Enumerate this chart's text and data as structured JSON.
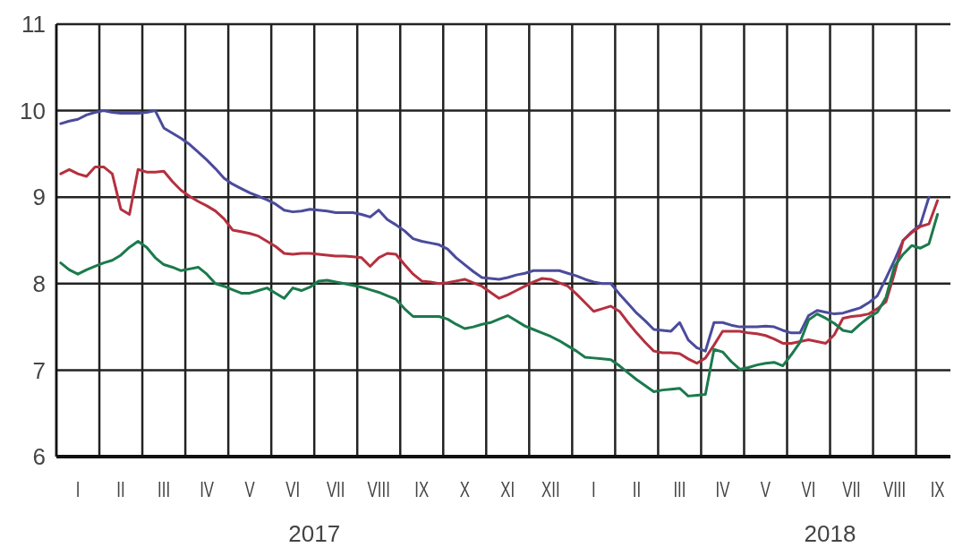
{
  "chart_data": {
    "type": "line",
    "ylim": [
      6,
      11
    ],
    "yticks": [
      6,
      7,
      8,
      9,
      10,
      11
    ],
    "grid": true,
    "categories": [
      null,
      null,
      "I",
      null,
      null,
      null,
      null,
      "II",
      null,
      null,
      null,
      null,
      "III",
      null,
      null,
      null,
      null,
      "IV",
      null,
      null,
      null,
      null,
      "V",
      null,
      null,
      null,
      null,
      "VI",
      null,
      null,
      null,
      null,
      "VII",
      null,
      null,
      null,
      null,
      "VIII",
      null,
      null,
      null,
      null,
      "IX",
      null,
      null,
      null,
      null,
      "X",
      null,
      null,
      null,
      null,
      "XI",
      null,
      null,
      null,
      null,
      "XII",
      null,
      null,
      null,
      null,
      "I",
      null,
      null,
      null,
      null,
      "II",
      null,
      null,
      null,
      null,
      "III",
      null,
      null,
      null,
      null,
      "IV",
      null,
      null,
      null,
      null,
      "V",
      null,
      null,
      null,
      null,
      "VI",
      null,
      null,
      null,
      null,
      "VII",
      null,
      null,
      null,
      null,
      "VIII",
      null,
      null,
      null,
      null,
      "IX",
      null
    ],
    "annotations": [
      "2017",
      "2018"
    ],
    "series": [
      {
        "color": "#4b4b9c",
        "values": [
          9.85,
          9.88,
          9.9,
          9.95,
          9.98,
          10.0,
          9.98,
          9.97,
          9.97,
          9.97,
          9.98,
          10.0,
          9.8,
          9.74,
          9.68,
          9.61,
          9.52,
          9.43,
          9.33,
          9.22,
          9.15,
          9.1,
          9.05,
          9.01,
          8.97,
          8.92,
          8.85,
          8.83,
          8.84,
          8.86,
          8.85,
          8.84,
          8.82,
          8.82,
          8.82,
          8.8,
          8.77,
          8.85,
          8.74,
          8.68,
          8.61,
          8.52,
          8.49,
          8.47,
          8.45,
          8.4,
          8.3,
          8.22,
          8.14,
          8.07,
          8.06,
          8.05,
          8.07,
          8.1,
          8.12,
          8.15,
          8.15,
          8.15,
          8.15,
          8.12,
          8.09,
          8.05,
          8.02,
          8.0,
          8.0,
          7.88,
          7.77,
          7.66,
          7.57,
          7.47,
          7.46,
          7.45,
          7.55,
          7.35,
          7.26,
          7.22,
          7.55,
          7.55,
          7.52,
          7.5,
          7.5,
          7.5,
          7.51,
          7.5,
          7.46,
          7.43,
          7.43,
          7.63,
          7.69,
          7.67,
          7.65,
          7.66,
          7.69,
          7.72,
          7.78,
          7.86,
          8.06,
          8.27,
          8.5,
          8.6,
          8.68,
          9.0,
          null,
          null
        ]
      },
      {
        "color": "#b5303f",
        "values": [
          9.27,
          9.32,
          9.27,
          9.24,
          9.35,
          9.35,
          9.27,
          8.86,
          8.8,
          9.32,
          9.29,
          9.29,
          9.3,
          9.18,
          9.08,
          9.01,
          8.95,
          8.9,
          8.84,
          8.75,
          8.62,
          8.6,
          8.58,
          8.55,
          8.49,
          8.43,
          8.35,
          8.34,
          8.35,
          8.35,
          8.34,
          8.33,
          8.32,
          8.32,
          8.31,
          8.3,
          8.2,
          8.3,
          8.35,
          8.34,
          8.22,
          8.11,
          8.03,
          8.02,
          8.0,
          8.01,
          8.03,
          8.05,
          8.01,
          7.97,
          7.9,
          7.83,
          7.87,
          7.92,
          7.97,
          8.02,
          8.06,
          8.05,
          8.01,
          7.97,
          7.88,
          7.78,
          7.68,
          7.71,
          7.74,
          7.68,
          7.55,
          7.43,
          7.32,
          7.22,
          7.2,
          7.2,
          7.19,
          7.13,
          7.08,
          7.14,
          7.29,
          7.45,
          7.45,
          7.45,
          7.43,
          7.42,
          7.4,
          7.36,
          7.31,
          7.31,
          7.33,
          7.35,
          7.33,
          7.31,
          7.41,
          7.6,
          7.62,
          7.63,
          7.65,
          7.71,
          7.79,
          8.12,
          8.5,
          8.59,
          8.66,
          8.69,
          8.96,
          null
        ]
      },
      {
        "color": "#1b7a4c",
        "values": [
          8.24,
          8.16,
          8.11,
          8.16,
          8.2,
          8.24,
          8.27,
          8.33,
          8.42,
          8.49,
          8.42,
          8.3,
          8.22,
          8.19,
          8.15,
          8.17,
          8.19,
          8.11,
          8.0,
          7.97,
          7.93,
          7.89,
          7.89,
          7.92,
          7.95,
          7.89,
          7.83,
          7.95,
          7.92,
          7.96,
          8.03,
          8.04,
          8.02,
          8.0,
          7.98,
          7.96,
          7.93,
          7.9,
          7.86,
          7.82,
          7.71,
          7.62,
          7.62,
          7.62,
          7.62,
          7.59,
          7.53,
          7.48,
          7.5,
          7.53,
          7.55,
          7.59,
          7.63,
          7.57,
          7.51,
          7.47,
          7.43,
          7.39,
          7.34,
          7.28,
          7.22,
          7.15,
          7.14,
          7.13,
          7.12,
          7.05,
          6.97,
          6.89,
          6.82,
          6.75,
          6.77,
          6.78,
          6.79,
          6.7,
          6.71,
          6.72,
          7.24,
          7.21,
          7.1,
          7.01,
          7.03,
          7.06,
          7.08,
          7.09,
          7.05,
          7.18,
          7.32,
          7.58,
          7.65,
          7.6,
          7.54,
          7.46,
          7.44,
          7.53,
          7.61,
          7.67,
          7.84,
          8.2,
          8.34,
          8.44,
          8.41,
          8.46,
          8.8,
          null
        ]
      }
    ]
  }
}
